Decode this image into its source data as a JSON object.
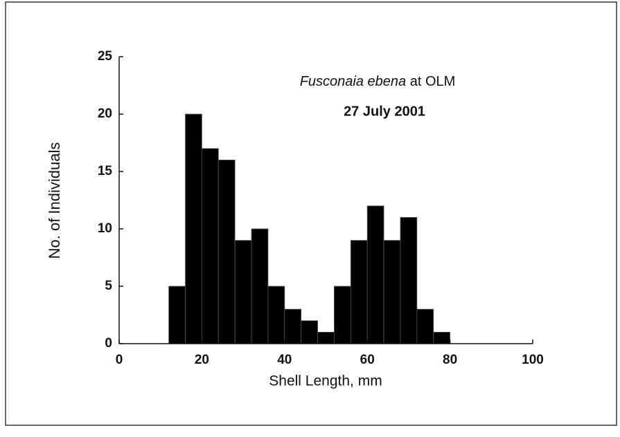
{
  "chart_data": {
    "type": "histogram",
    "annotation": {
      "species": "Fusconaia ebena",
      "site": "at OLM",
      "date": "27 July 2001"
    },
    "x_label": "Shell Length, mm",
    "y_label": "No. of Individuals",
    "bins": [
      12,
      16,
      20,
      24,
      28,
      32,
      36,
      40,
      44,
      48,
      52,
      56,
      60,
      64,
      68,
      72,
      76,
      80
    ],
    "values": [
      5,
      20,
      17,
      16,
      9,
      10,
      5,
      3,
      2,
      1,
      5,
      9,
      12,
      9,
      11,
      3,
      1
    ],
    "color": "#000000",
    "xlim": [
      0,
      100
    ],
    "xticks": [
      0,
      20,
      40,
      60,
      80,
      100
    ],
    "ylim": [
      0,
      25
    ],
    "yticks": [
      0,
      5,
      10,
      15,
      20,
      25
    ]
  }
}
